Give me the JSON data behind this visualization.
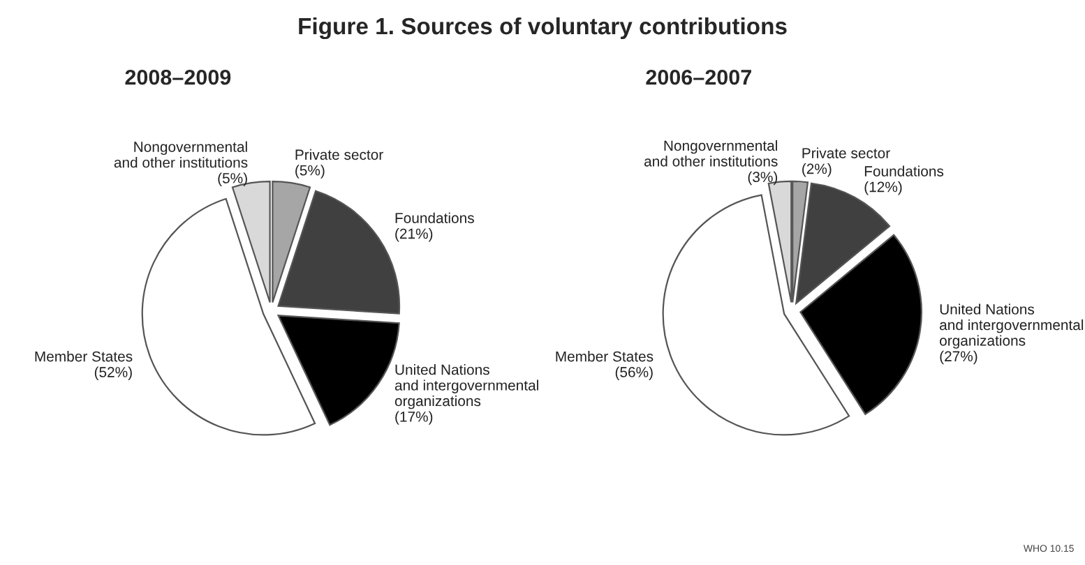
{
  "chart_data": [
    {
      "type": "pie",
      "title": "Figure 1. Sources of voluntary contributions",
      "subtitle": "2008–2009",
      "categories": [
        "Private sector",
        "Foundations",
        "United Nations\nand intergovernmental\norganizations",
        "Member States",
        "Nongovernmental\nand other institutions"
      ],
      "values": [
        5,
        21,
        17,
        52,
        5
      ],
      "value_labels": [
        "(5%)",
        "(21%)",
        "(17%)",
        "(52%)",
        "(5%)"
      ],
      "colors": [
        "#a6a6a6",
        "#404040",
        "#000000",
        "#ffffff",
        "#d9d9d9"
      ]
    },
    {
      "type": "pie",
      "subtitle": "2006–2007",
      "categories": [
        "Private sector",
        "Foundations",
        "United Nations\nand intergovernmental\norganizations",
        "Member States",
        "Nongovernmental\nand other institutions"
      ],
      "values": [
        2,
        12,
        27,
        56,
        3
      ],
      "value_labels": [
        "(2%)",
        "(12%)",
        "(27%)",
        "(56%)",
        "(3%)"
      ],
      "colors": [
        "#a6a6a6",
        "#404040",
        "#000000",
        "#ffffff",
        "#d9d9d9"
      ],
      "annotations": [
        "WHO 10.15"
      ]
    }
  ]
}
